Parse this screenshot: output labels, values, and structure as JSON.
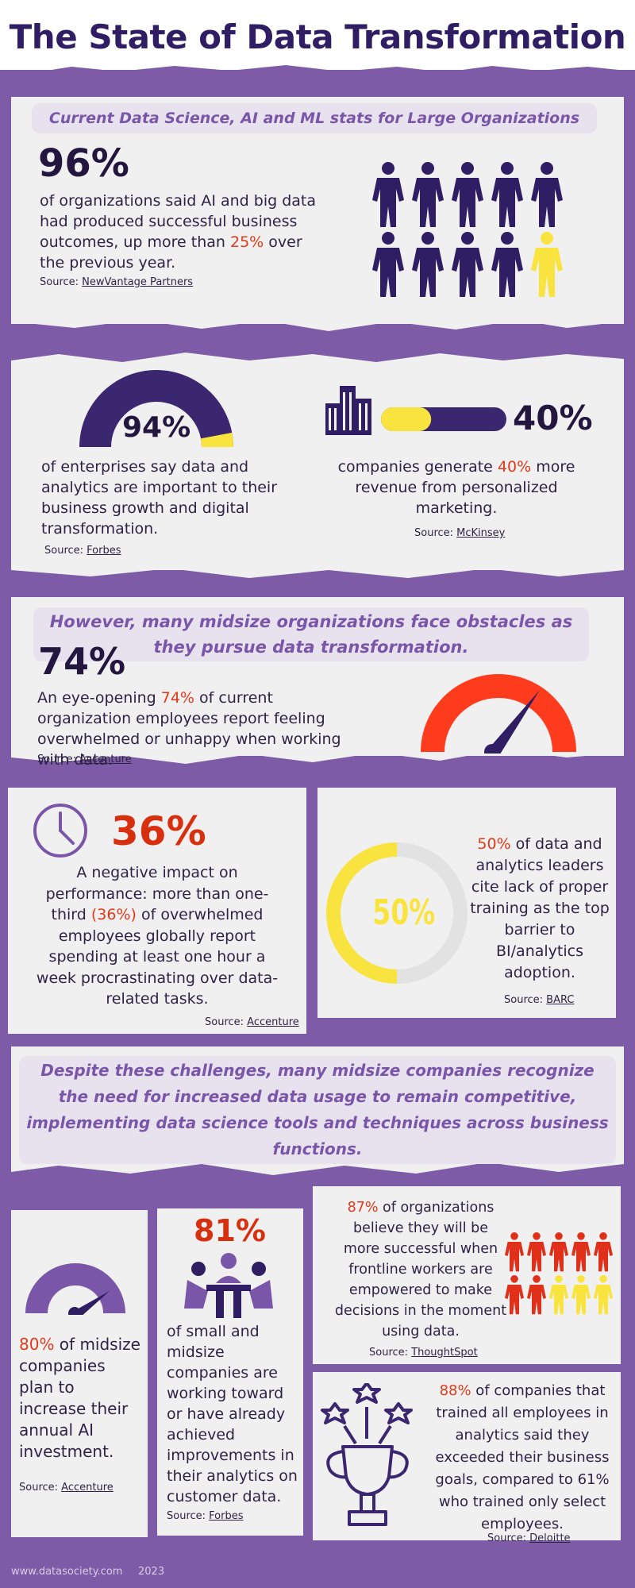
{
  "title": "The State of Data Transformation",
  "section1": {
    "heading": "Current Data Science, AI and ML stats for Large Organizations",
    "stat": "96%",
    "text_a": "of organizations said AI and big data had produced successful business outcomes, up more than ",
    "text_hl": "25%",
    "text_b": " over the previous year.",
    "source_label": "Source: ",
    "source_name": "NewVantage Partners",
    "people_highlighted": 1,
    "people_total": 10
  },
  "section2": {
    "gauge_value": "94%",
    "gauge_fraction": 0.94,
    "left_text": "of enterprises say data and analytics are important to their business growth and digital transformation.",
    "left_source_label": "Source: ",
    "left_source_name": "Forbes",
    "right_stat": "40%",
    "right_bar_fraction": 0.4,
    "right_text_a": "companies generate ",
    "right_text_hl": "40%",
    "right_text_b": " more revenue from personalized marketing.",
    "right_source_label": "Source: ",
    "right_source_name": "McKinsey"
  },
  "section3": {
    "heading": "However, many midsize organizations face obstacles as they pursue data transformation.",
    "stat": "74%",
    "text_a": "An eye-opening ",
    "text_hl": "74%",
    "text_b": " of current organization employees report feeling overwhelmed or unhappy when working with data.",
    "source_label": "Source: ",
    "source_name": "Accenture"
  },
  "section4": {
    "stat": "36%",
    "text_a": "A negative impact on performance: more than one-third ",
    "text_hl": "(36%)",
    "text_b": " of overwhelmed employees globally report spending at least one hour a week procrastinating over data-related tasks.",
    "source_label": "Source: ",
    "source_name": "Accenture"
  },
  "section5": {
    "ring_value": "50%",
    "ring_fraction": 0.5,
    "text_hl": "50%",
    "text_b": " of data and analytics leaders cite lack of proper training as the top barrier to BI/analytics adoption.",
    "source_label": "Source: ",
    "source_name": "BARC"
  },
  "section6": {
    "heading": "Despite these challenges, many midsize companies recognize the need for increased data usage to remain competitive, implementing data science tools and techniques across business functions."
  },
  "card80": {
    "text_hl": "80%",
    "text_b": " of midsize companies plan to increase their annual AI investment.",
    "source_label": "Source: ",
    "source_name": "Accenture"
  },
  "card81": {
    "stat": "81%",
    "text": "of small and midsize companies are working toward or have already achieved improvements in their analytics on customer data.",
    "source_label": "Source: ",
    "source_name": "Forbes"
  },
  "card87": {
    "text_hl": "87%",
    "text_b": " of organizations believe they will be more successful when frontline workers are empowered to make decisions in the moment using data.",
    "source_label": "Source: ",
    "source_name": "ThoughtSpot"
  },
  "card88": {
    "text_hl": "88%",
    "text_b": " of companies that trained all employees in analytics said they exceeded their business goals, compared to 61% who trained only select employees.",
    "source_label": "Source: ",
    "source_name": "Deloitte"
  },
  "footer": {
    "site": "www.datasociety.com",
    "year": "2023"
  },
  "colors": {
    "purple_bg": "#7d5ba6",
    "dark_navy": "#2f1e63",
    "highlight_red": "#e03a1a",
    "yellow": "#f9e43f",
    "pill_text": "#7a56a8"
  },
  "icons": [
    "people-grid-icon",
    "buildings-icon",
    "gauge-icon",
    "clock-icon",
    "meeting-icon",
    "trophy-icon",
    "stars-icon"
  ]
}
